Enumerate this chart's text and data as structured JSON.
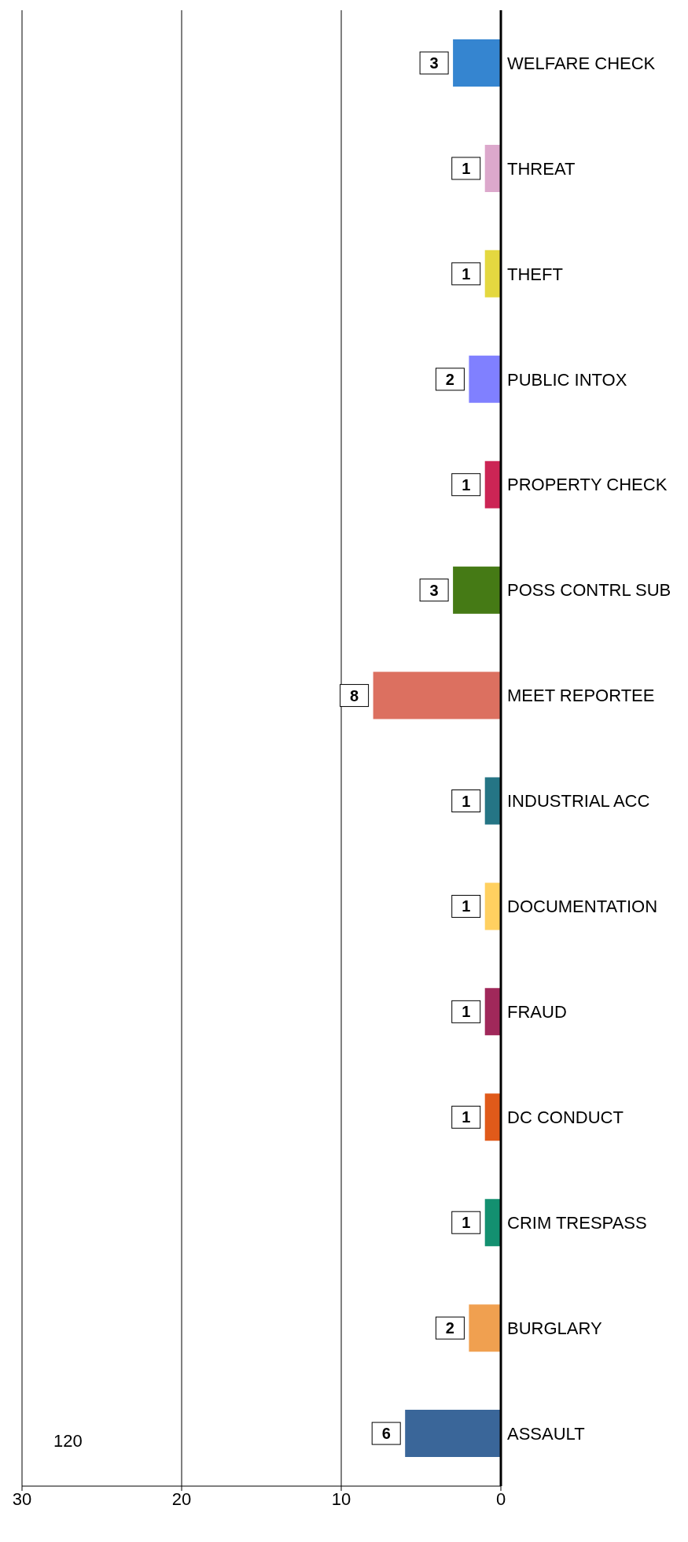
{
  "chart_data": {
    "type": "bar",
    "orientation": "horizontal",
    "categories": [
      "WELFARE CHECK",
      "THREAT",
      "THEFT",
      "PUBLIC INTOX",
      "PROPERTY CHECK",
      "POSS CONTRL SUB",
      "MEET REPORTEE",
      "INDUSTRIAL ACC",
      "DOCUMENTATION",
      "FRAUD",
      "DC CONDUCT",
      "CRIM TRESPASS",
      "BURGLARY",
      "ASSAULT"
    ],
    "values": [
      3,
      1,
      1,
      2,
      1,
      3,
      8,
      1,
      1,
      1,
      1,
      1,
      2,
      6
    ],
    "colors": [
      "#3585d0",
      "#dca8cc",
      "#e4d840",
      "#8080ff",
      "#cc2555",
      "#457a15",
      "#dc7060",
      "#257585",
      "#ffd060",
      "#a0285a",
      "#e05a1a",
      "#139070",
      "#f0a050",
      "#3a6699"
    ],
    "xlim": [
      30,
      0
    ],
    "xticks": [
      0,
      10,
      20,
      30
    ],
    "grid": "x",
    "data_labels": true,
    "annotations": [
      "120"
    ]
  }
}
